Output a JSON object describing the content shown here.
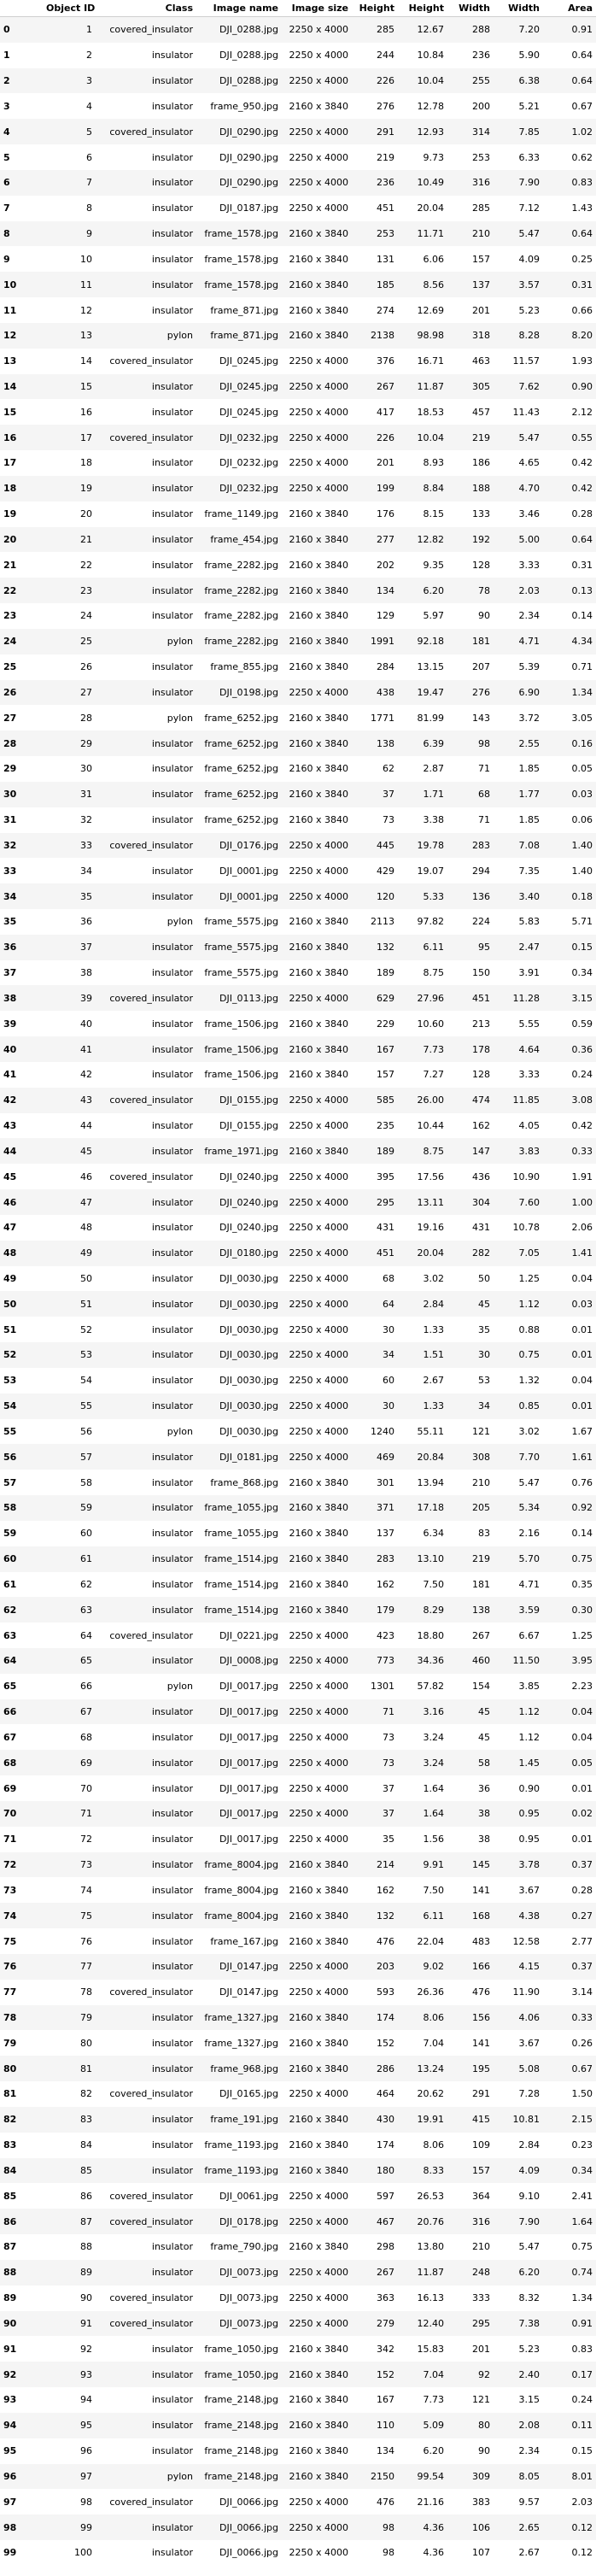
{
  "columns": [
    "",
    "Object ID",
    "Class",
    "Image name",
    "Image size",
    "Height",
    "Height",
    "Width",
    "Width",
    "Area"
  ],
  "rows": [
    [
      "0",
      "1",
      "covered_insulator",
      "DJI_0288.jpg",
      "2250 x 4000",
      "285",
      "12.67",
      "288",
      "7.20",
      "0.91"
    ],
    [
      "1",
      "2",
      "insulator",
      "DJI_0288.jpg",
      "2250 x 4000",
      "244",
      "10.84",
      "236",
      "5.90",
      "0.64"
    ],
    [
      "2",
      "3",
      "insulator",
      "DJI_0288.jpg",
      "2250 x 4000",
      "226",
      "10.04",
      "255",
      "6.38",
      "0.64"
    ],
    [
      "3",
      "4",
      "insulator",
      "frame_950.jpg",
      "2160 x 3840",
      "276",
      "12.78",
      "200",
      "5.21",
      "0.67"
    ],
    [
      "4",
      "5",
      "covered_insulator",
      "DJI_0290.jpg",
      "2250 x 4000",
      "291",
      "12.93",
      "314",
      "7.85",
      "1.02"
    ],
    [
      "5",
      "6",
      "insulator",
      "DJI_0290.jpg",
      "2250 x 4000",
      "219",
      "9.73",
      "253",
      "6.33",
      "0.62"
    ],
    [
      "6",
      "7",
      "insulator",
      "DJI_0290.jpg",
      "2250 x 4000",
      "236",
      "10.49",
      "316",
      "7.90",
      "0.83"
    ],
    [
      "7",
      "8",
      "insulator",
      "DJI_0187.jpg",
      "2250 x 4000",
      "451",
      "20.04",
      "285",
      "7.12",
      "1.43"
    ],
    [
      "8",
      "9",
      "insulator",
      "frame_1578.jpg",
      "2160 x 3840",
      "253",
      "11.71",
      "210",
      "5.47",
      "0.64"
    ],
    [
      "9",
      "10",
      "insulator",
      "frame_1578.jpg",
      "2160 x 3840",
      "131",
      "6.06",
      "157",
      "4.09",
      "0.25"
    ],
    [
      "10",
      "11",
      "insulator",
      "frame_1578.jpg",
      "2160 x 3840",
      "185",
      "8.56",
      "137",
      "3.57",
      "0.31"
    ],
    [
      "11",
      "12",
      "insulator",
      "frame_871.jpg",
      "2160 x 3840",
      "274",
      "12.69",
      "201",
      "5.23",
      "0.66"
    ],
    [
      "12",
      "13",
      "pylon",
      "frame_871.jpg",
      "2160 x 3840",
      "2138",
      "98.98",
      "318",
      "8.28",
      "8.20"
    ],
    [
      "13",
      "14",
      "covered_insulator",
      "DJI_0245.jpg",
      "2250 x 4000",
      "376",
      "16.71",
      "463",
      "11.57",
      "1.93"
    ],
    [
      "14",
      "15",
      "insulator",
      "DJI_0245.jpg",
      "2250 x 4000",
      "267",
      "11.87",
      "305",
      "7.62",
      "0.90"
    ],
    [
      "15",
      "16",
      "insulator",
      "DJI_0245.jpg",
      "2250 x 4000",
      "417",
      "18.53",
      "457",
      "11.43",
      "2.12"
    ],
    [
      "16",
      "17",
      "covered_insulator",
      "DJI_0232.jpg",
      "2250 x 4000",
      "226",
      "10.04",
      "219",
      "5.47",
      "0.55"
    ],
    [
      "17",
      "18",
      "insulator",
      "DJI_0232.jpg",
      "2250 x 4000",
      "201",
      "8.93",
      "186",
      "4.65",
      "0.42"
    ],
    [
      "18",
      "19",
      "insulator",
      "DJI_0232.jpg",
      "2250 x 4000",
      "199",
      "8.84",
      "188",
      "4.70",
      "0.42"
    ],
    [
      "19",
      "20",
      "insulator",
      "frame_1149.jpg",
      "2160 x 3840",
      "176",
      "8.15",
      "133",
      "3.46",
      "0.28"
    ],
    [
      "20",
      "21",
      "insulator",
      "frame_454.jpg",
      "2160 x 3840",
      "277",
      "12.82",
      "192",
      "5.00",
      "0.64"
    ],
    [
      "21",
      "22",
      "insulator",
      "frame_2282.jpg",
      "2160 x 3840",
      "202",
      "9.35",
      "128",
      "3.33",
      "0.31"
    ],
    [
      "22",
      "23",
      "insulator",
      "frame_2282.jpg",
      "2160 x 3840",
      "134",
      "6.20",
      "78",
      "2.03",
      "0.13"
    ],
    [
      "23",
      "24",
      "insulator",
      "frame_2282.jpg",
      "2160 x 3840",
      "129",
      "5.97",
      "90",
      "2.34",
      "0.14"
    ],
    [
      "24",
      "25",
      "pylon",
      "frame_2282.jpg",
      "2160 x 3840",
      "1991",
      "92.18",
      "181",
      "4.71",
      "4.34"
    ],
    [
      "25",
      "26",
      "insulator",
      "frame_855.jpg",
      "2160 x 3840",
      "284",
      "13.15",
      "207",
      "5.39",
      "0.71"
    ],
    [
      "26",
      "27",
      "insulator",
      "DJI_0198.jpg",
      "2250 x 4000",
      "438",
      "19.47",
      "276",
      "6.90",
      "1.34"
    ],
    [
      "27",
      "28",
      "pylon",
      "frame_6252.jpg",
      "2160 x 3840",
      "1771",
      "81.99",
      "143",
      "3.72",
      "3.05"
    ],
    [
      "28",
      "29",
      "insulator",
      "frame_6252.jpg",
      "2160 x 3840",
      "138",
      "6.39",
      "98",
      "2.55",
      "0.16"
    ],
    [
      "29",
      "30",
      "insulator",
      "frame_6252.jpg",
      "2160 x 3840",
      "62",
      "2.87",
      "71",
      "1.85",
      "0.05"
    ],
    [
      "30",
      "31",
      "insulator",
      "frame_6252.jpg",
      "2160 x 3840",
      "37",
      "1.71",
      "68",
      "1.77",
      "0.03"
    ],
    [
      "31",
      "32",
      "insulator",
      "frame_6252.jpg",
      "2160 x 3840",
      "73",
      "3.38",
      "71",
      "1.85",
      "0.06"
    ],
    [
      "32",
      "33",
      "covered_insulator",
      "DJI_0176.jpg",
      "2250 x 4000",
      "445",
      "19.78",
      "283",
      "7.08",
      "1.40"
    ],
    [
      "33",
      "34",
      "insulator",
      "DJI_0001.jpg",
      "2250 x 4000",
      "429",
      "19.07",
      "294",
      "7.35",
      "1.40"
    ],
    [
      "34",
      "35",
      "insulator",
      "DJI_0001.jpg",
      "2250 x 4000",
      "120",
      "5.33",
      "136",
      "3.40",
      "0.18"
    ],
    [
      "35",
      "36",
      "pylon",
      "frame_5575.jpg",
      "2160 x 3840",
      "2113",
      "97.82",
      "224",
      "5.83",
      "5.71"
    ],
    [
      "36",
      "37",
      "insulator",
      "frame_5575.jpg",
      "2160 x 3840",
      "132",
      "6.11",
      "95",
      "2.47",
      "0.15"
    ],
    [
      "37",
      "38",
      "insulator",
      "frame_5575.jpg",
      "2160 x 3840",
      "189",
      "8.75",
      "150",
      "3.91",
      "0.34"
    ],
    [
      "38",
      "39",
      "covered_insulator",
      "DJI_0113.jpg",
      "2250 x 4000",
      "629",
      "27.96",
      "451",
      "11.28",
      "3.15"
    ],
    [
      "39",
      "40",
      "insulator",
      "frame_1506.jpg",
      "2160 x 3840",
      "229",
      "10.60",
      "213",
      "5.55",
      "0.59"
    ],
    [
      "40",
      "41",
      "insulator",
      "frame_1506.jpg",
      "2160 x 3840",
      "167",
      "7.73",
      "178",
      "4.64",
      "0.36"
    ],
    [
      "41",
      "42",
      "insulator",
      "frame_1506.jpg",
      "2160 x 3840",
      "157",
      "7.27",
      "128",
      "3.33",
      "0.24"
    ],
    [
      "42",
      "43",
      "covered_insulator",
      "DJI_0155.jpg",
      "2250 x 4000",
      "585",
      "26.00",
      "474",
      "11.85",
      "3.08"
    ],
    [
      "43",
      "44",
      "insulator",
      "DJI_0155.jpg",
      "2250 x 4000",
      "235",
      "10.44",
      "162",
      "4.05",
      "0.42"
    ],
    [
      "44",
      "45",
      "insulator",
      "frame_1971.jpg",
      "2160 x 3840",
      "189",
      "8.75",
      "147",
      "3.83",
      "0.33"
    ],
    [
      "45",
      "46",
      "covered_insulator",
      "DJI_0240.jpg",
      "2250 x 4000",
      "395",
      "17.56",
      "436",
      "10.90",
      "1.91"
    ],
    [
      "46",
      "47",
      "insulator",
      "DJI_0240.jpg",
      "2250 x 4000",
      "295",
      "13.11",
      "304",
      "7.60",
      "1.00"
    ],
    [
      "47",
      "48",
      "insulator",
      "DJI_0240.jpg",
      "2250 x 4000",
      "431",
      "19.16",
      "431",
      "10.78",
      "2.06"
    ],
    [
      "48",
      "49",
      "insulator",
      "DJI_0180.jpg",
      "2250 x 4000",
      "451",
      "20.04",
      "282",
      "7.05",
      "1.41"
    ],
    [
      "49",
      "50",
      "insulator",
      "DJI_0030.jpg",
      "2250 x 4000",
      "68",
      "3.02",
      "50",
      "1.25",
      "0.04"
    ],
    [
      "50",
      "51",
      "insulator",
      "DJI_0030.jpg",
      "2250 x 4000",
      "64",
      "2.84",
      "45",
      "1.12",
      "0.03"
    ],
    [
      "51",
      "52",
      "insulator",
      "DJI_0030.jpg",
      "2250 x 4000",
      "30",
      "1.33",
      "35",
      "0.88",
      "0.01"
    ],
    [
      "52",
      "53",
      "insulator",
      "DJI_0030.jpg",
      "2250 x 4000",
      "34",
      "1.51",
      "30",
      "0.75",
      "0.01"
    ],
    [
      "53",
      "54",
      "insulator",
      "DJI_0030.jpg",
      "2250 x 4000",
      "60",
      "2.67",
      "53",
      "1.32",
      "0.04"
    ],
    [
      "54",
      "55",
      "insulator",
      "DJI_0030.jpg",
      "2250 x 4000",
      "30",
      "1.33",
      "34",
      "0.85",
      "0.01"
    ],
    [
      "55",
      "56",
      "pylon",
      "DJI_0030.jpg",
      "2250 x 4000",
      "1240",
      "55.11",
      "121",
      "3.02",
      "1.67"
    ],
    [
      "56",
      "57",
      "insulator",
      "DJI_0181.jpg",
      "2250 x 4000",
      "469",
      "20.84",
      "308",
      "7.70",
      "1.61"
    ],
    [
      "57",
      "58",
      "insulator",
      "frame_868.jpg",
      "2160 x 3840",
      "301",
      "13.94",
      "210",
      "5.47",
      "0.76"
    ],
    [
      "58",
      "59",
      "insulator",
      "frame_1055.jpg",
      "2160 x 3840",
      "371",
      "17.18",
      "205",
      "5.34",
      "0.92"
    ],
    [
      "59",
      "60",
      "insulator",
      "frame_1055.jpg",
      "2160 x 3840",
      "137",
      "6.34",
      "83",
      "2.16",
      "0.14"
    ],
    [
      "60",
      "61",
      "insulator",
      "frame_1514.jpg",
      "2160 x 3840",
      "283",
      "13.10",
      "219",
      "5.70",
      "0.75"
    ],
    [
      "61",
      "62",
      "insulator",
      "frame_1514.jpg",
      "2160 x 3840",
      "162",
      "7.50",
      "181",
      "4.71",
      "0.35"
    ],
    [
      "62",
      "63",
      "insulator",
      "frame_1514.jpg",
      "2160 x 3840",
      "179",
      "8.29",
      "138",
      "3.59",
      "0.30"
    ],
    [
      "63",
      "64",
      "covered_insulator",
      "DJI_0221.jpg",
      "2250 x 4000",
      "423",
      "18.80",
      "267",
      "6.67",
      "1.25"
    ],
    [
      "64",
      "65",
      "insulator",
      "DJI_0008.jpg",
      "2250 x 4000",
      "773",
      "34.36",
      "460",
      "11.50",
      "3.95"
    ],
    [
      "65",
      "66",
      "pylon",
      "DJI_0017.jpg",
      "2250 x 4000",
      "1301",
      "57.82",
      "154",
      "3.85",
      "2.23"
    ],
    [
      "66",
      "67",
      "insulator",
      "DJI_0017.jpg",
      "2250 x 4000",
      "71",
      "3.16",
      "45",
      "1.12",
      "0.04"
    ],
    [
      "67",
      "68",
      "insulator",
      "DJI_0017.jpg",
      "2250 x 4000",
      "73",
      "3.24",
      "45",
      "1.12",
      "0.04"
    ],
    [
      "68",
      "69",
      "insulator",
      "DJI_0017.jpg",
      "2250 x 4000",
      "73",
      "3.24",
      "58",
      "1.45",
      "0.05"
    ],
    [
      "69",
      "70",
      "insulator",
      "DJI_0017.jpg",
      "2250 x 4000",
      "37",
      "1.64",
      "36",
      "0.90",
      "0.01"
    ],
    [
      "70",
      "71",
      "insulator",
      "DJI_0017.jpg",
      "2250 x 4000",
      "37",
      "1.64",
      "38",
      "0.95",
      "0.02"
    ],
    [
      "71",
      "72",
      "insulator",
      "DJI_0017.jpg",
      "2250 x 4000",
      "35",
      "1.56",
      "38",
      "0.95",
      "0.01"
    ],
    [
      "72",
      "73",
      "insulator",
      "frame_8004.jpg",
      "2160 x 3840",
      "214",
      "9.91",
      "145",
      "3.78",
      "0.37"
    ],
    [
      "73",
      "74",
      "insulator",
      "frame_8004.jpg",
      "2160 x 3840",
      "162",
      "7.50",
      "141",
      "3.67",
      "0.28"
    ],
    [
      "74",
      "75",
      "insulator",
      "frame_8004.jpg",
      "2160 x 3840",
      "132",
      "6.11",
      "168",
      "4.38",
      "0.27"
    ],
    [
      "75",
      "76",
      "insulator",
      "frame_167.jpg",
      "2160 x 3840",
      "476",
      "22.04",
      "483",
      "12.58",
      "2.77"
    ],
    [
      "76",
      "77",
      "insulator",
      "DJI_0147.jpg",
      "2250 x 4000",
      "203",
      "9.02",
      "166",
      "4.15",
      "0.37"
    ],
    [
      "77",
      "78",
      "covered_insulator",
      "DJI_0147.jpg",
      "2250 x 4000",
      "593",
      "26.36",
      "476",
      "11.90",
      "3.14"
    ],
    [
      "78",
      "79",
      "insulator",
      "frame_1327.jpg",
      "2160 x 3840",
      "174",
      "8.06",
      "156",
      "4.06",
      "0.33"
    ],
    [
      "79",
      "80",
      "insulator",
      "frame_1327.jpg",
      "2160 x 3840",
      "152",
      "7.04",
      "141",
      "3.67",
      "0.26"
    ],
    [
      "80",
      "81",
      "insulator",
      "frame_968.jpg",
      "2160 x 3840",
      "286",
      "13.24",
      "195",
      "5.08",
      "0.67"
    ],
    [
      "81",
      "82",
      "covered_insulator",
      "DJI_0165.jpg",
      "2250 x 4000",
      "464",
      "20.62",
      "291",
      "7.28",
      "1.50"
    ],
    [
      "82",
      "83",
      "insulator",
      "frame_191.jpg",
      "2160 x 3840",
      "430",
      "19.91",
      "415",
      "10.81",
      "2.15"
    ],
    [
      "83",
      "84",
      "insulator",
      "frame_1193.jpg",
      "2160 x 3840",
      "174",
      "8.06",
      "109",
      "2.84",
      "0.23"
    ],
    [
      "84",
      "85",
      "insulator",
      "frame_1193.jpg",
      "2160 x 3840",
      "180",
      "8.33",
      "157",
      "4.09",
      "0.34"
    ],
    [
      "85",
      "86",
      "covered_insulator",
      "DJI_0061.jpg",
      "2250 x 4000",
      "597",
      "26.53",
      "364",
      "9.10",
      "2.41"
    ],
    [
      "86",
      "87",
      "covered_insulator",
      "DJI_0178.jpg",
      "2250 x 4000",
      "467",
      "20.76",
      "316",
      "7.90",
      "1.64"
    ],
    [
      "87",
      "88",
      "insulator",
      "frame_790.jpg",
      "2160 x 3840",
      "298",
      "13.80",
      "210",
      "5.47",
      "0.75"
    ],
    [
      "88",
      "89",
      "insulator",
      "DJI_0073.jpg",
      "2250 x 4000",
      "267",
      "11.87",
      "248",
      "6.20",
      "0.74"
    ],
    [
      "89",
      "90",
      "covered_insulator",
      "DJI_0073.jpg",
      "2250 x 4000",
      "363",
      "16.13",
      "333",
      "8.32",
      "1.34"
    ],
    [
      "90",
      "91",
      "covered_insulator",
      "DJI_0073.jpg",
      "2250 x 4000",
      "279",
      "12.40",
      "295",
      "7.38",
      "0.91"
    ],
    [
      "91",
      "92",
      "insulator",
      "frame_1050.jpg",
      "2160 x 3840",
      "342",
      "15.83",
      "201",
      "5.23",
      "0.83"
    ],
    [
      "92",
      "93",
      "insulator",
      "frame_1050.jpg",
      "2160 x 3840",
      "152",
      "7.04",
      "92",
      "2.40",
      "0.17"
    ],
    [
      "93",
      "94",
      "insulator",
      "frame_2148.jpg",
      "2160 x 3840",
      "167",
      "7.73",
      "121",
      "3.15",
      "0.24"
    ],
    [
      "94",
      "95",
      "insulator",
      "frame_2148.jpg",
      "2160 x 3840",
      "110",
      "5.09",
      "80",
      "2.08",
      "0.11"
    ],
    [
      "95",
      "96",
      "insulator",
      "frame_2148.jpg",
      "2160 x 3840",
      "134",
      "6.20",
      "90",
      "2.34",
      "0.15"
    ],
    [
      "96",
      "97",
      "pylon",
      "frame_2148.jpg",
      "2160 x 3840",
      "2150",
      "99.54",
      "309",
      "8.05",
      "8.01"
    ],
    [
      "97",
      "98",
      "covered_insulator",
      "DJI_0066.jpg",
      "2250 x 4000",
      "476",
      "21.16",
      "383",
      "9.57",
      "2.03"
    ],
    [
      "98",
      "99",
      "insulator",
      "DJI_0066.jpg",
      "2250 x 4000",
      "98",
      "4.36",
      "106",
      "2.65",
      "0.12"
    ],
    [
      "99",
      "100",
      "insulator",
      "DJI_0066.jpg",
      "2250 x 4000",
      "98",
      "4.36",
      "107",
      "2.67",
      "0.12"
    ]
  ]
}
